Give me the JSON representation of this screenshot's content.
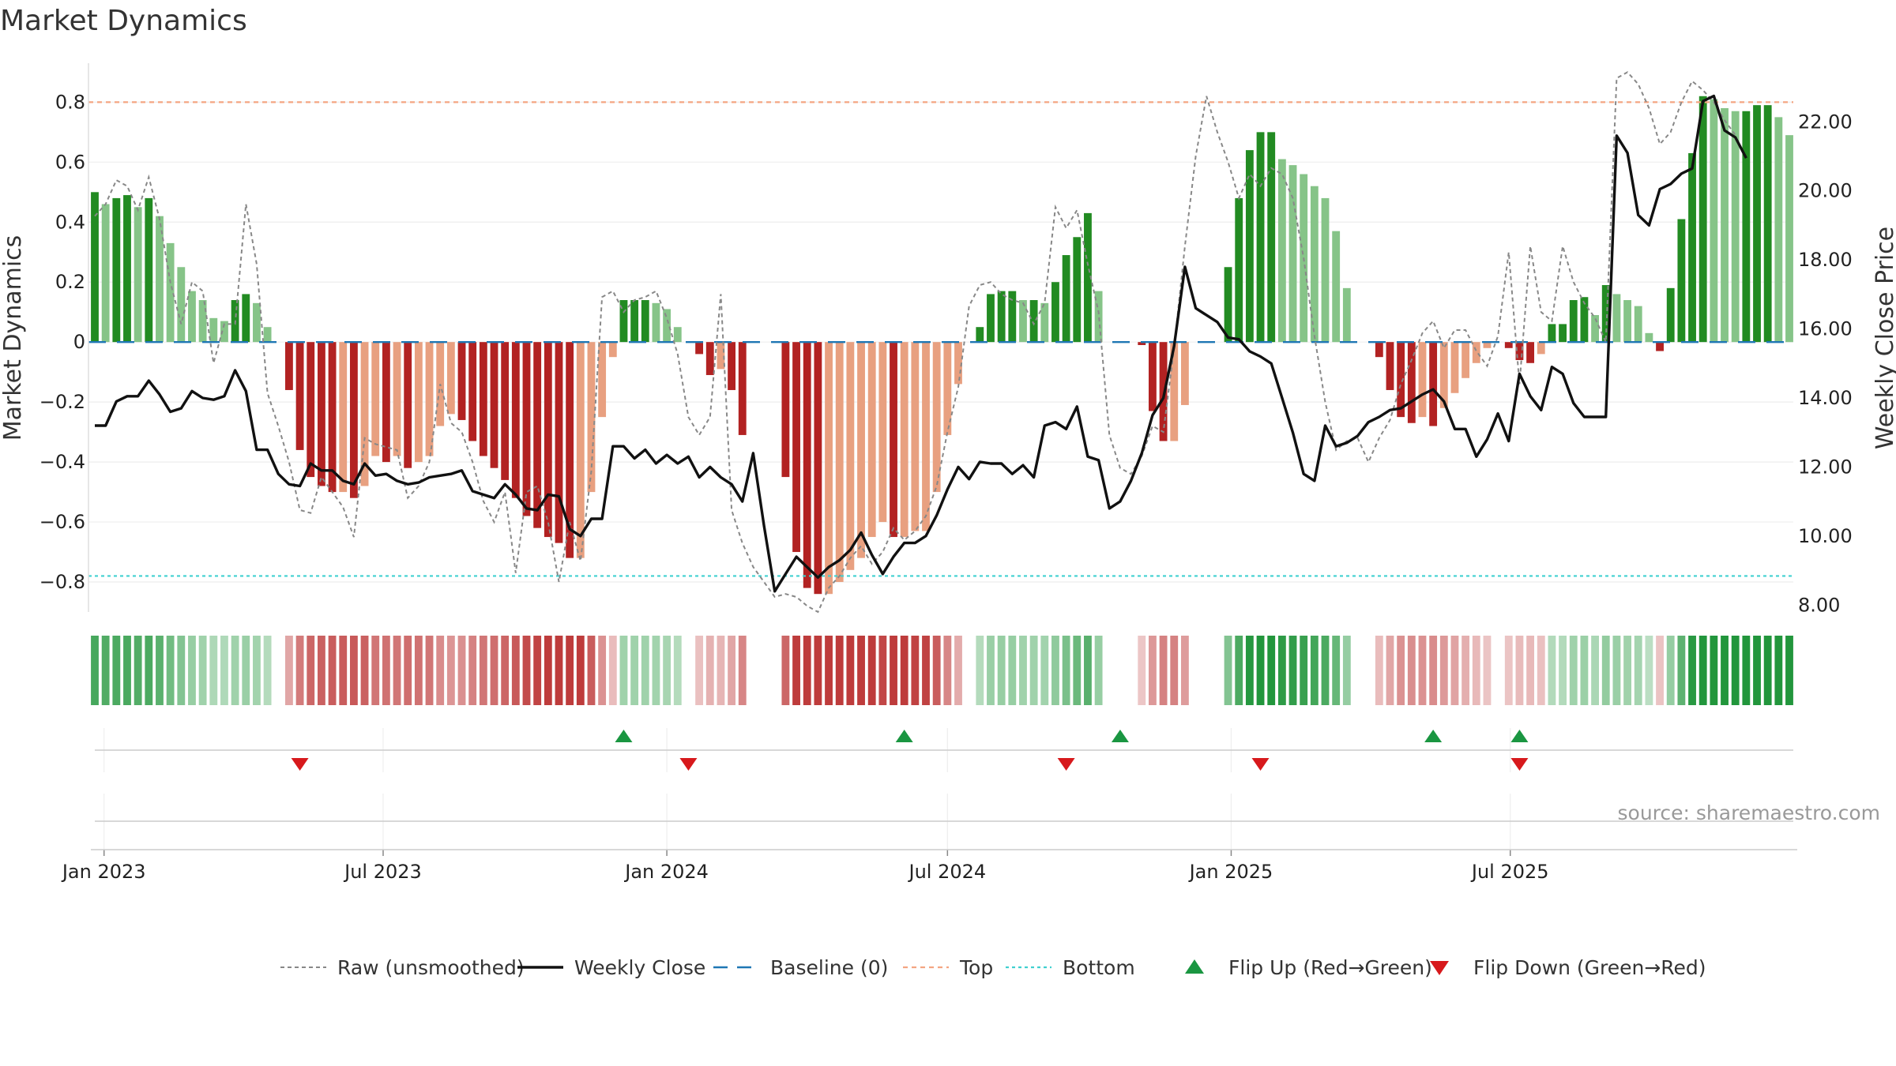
{
  "chart_data": {
    "type": "bar",
    "title": "Market Dynamics",
    "source": "source: sharemaestro.com",
    "left_axis": {
      "label": "Market Dynamics",
      "ylim": [
        -0.9,
        0.93
      ],
      "ticks": [
        -0.8,
        -0.6,
        -0.4,
        -0.2,
        0,
        0.2,
        0.4,
        0.6,
        0.8
      ],
      "tick_labels": [
        "−0.8",
        "−0.6",
        "−0.4",
        "−0.2",
        "0",
        "0.2",
        "0.4",
        "0.6",
        "0.8"
      ]
    },
    "right_axis": {
      "label": "Weekly Close Price",
      "ylim": [
        7.8,
        23.7
      ],
      "ticks": [
        8,
        10,
        12,
        14,
        16,
        18,
        20,
        22
      ],
      "tick_labels": [
        "8.00",
        "10.00",
        "12.00",
        "14.00",
        "16.00",
        "18.00",
        "20.00",
        "22.00"
      ]
    },
    "x_ticks": [
      {
        "date": "2023-01-01",
        "label": "Jan 2023"
      },
      {
        "date": "2023-07-01",
        "label": "Jul 2023"
      },
      {
        "date": "2024-01-01",
        "label": "Jan 2024"
      },
      {
        "date": "2024-07-01",
        "label": "Jul 2024"
      },
      {
        "date": "2025-01-01",
        "label": "Jan 2025"
      },
      {
        "date": "2025-07-01",
        "label": "Jul 2025"
      }
    ],
    "weeks": {
      "start_date": "2022-12-26",
      "interval_days": 7,
      "momentum": [
        0.5,
        0.46,
        0.48,
        0.49,
        0.45,
        0.48,
        0.42,
        0.33,
        0.25,
        0.17,
        0.14,
        0.08,
        0.07,
        0.14,
        0.16,
        0.13,
        0.05,
        0,
        -0.16,
        -0.36,
        -0.45,
        -0.48,
        -0.5,
        -0.5,
        -0.52,
        -0.48,
        -0.38,
        -0.4,
        -0.38,
        -0.42,
        -0.4,
        -0.38,
        -0.28,
        -0.24,
        -0.26,
        -0.33,
        -0.38,
        -0.42,
        -0.46,
        -0.52,
        -0.58,
        -0.62,
        -0.65,
        -0.67,
        -0.72,
        -0.72,
        -0.5,
        -0.25,
        -0.05,
        0.14,
        0.14,
        0.14,
        0.13,
        0.11,
        0.05,
        0,
        -0.04,
        -0.11,
        -0.09,
        -0.16,
        -0.31,
        0,
        0,
        0,
        -0.45,
        -0.7,
        -0.82,
        -0.84,
        -0.84,
        -0.8,
        -0.76,
        -0.72,
        -0.65,
        -0.6,
        -0.65,
        -0.65,
        -0.63,
        -0.63,
        -0.5,
        -0.31,
        -0.14,
        0,
        0.05,
        0.16,
        0.17,
        0.17,
        0.14,
        0.14,
        0.13,
        0.2,
        0.29,
        0.35,
        0.43,
        0.17,
        0,
        0,
        0,
        -0.01,
        -0.23,
        -0.33,
        -0.33,
        -0.21,
        0,
        0,
        0,
        0.25,
        0.48,
        0.64,
        0.7,
        0.7,
        0.61,
        0.59,
        0.56,
        0.52,
        0.48,
        0.37,
        0.18,
        0,
        0,
        -0.05,
        -0.16,
        -0.25,
        -0.27,
        -0.25,
        -0.28,
        -0.22,
        -0.17,
        -0.12,
        -0.07,
        -0.02,
        0,
        -0.02,
        -0.06,
        -0.07,
        -0.04,
        0.06,
        0.06,
        0.14,
        0.15,
        0.09,
        0.19,
        0.16,
        0.14,
        0.12,
        0.03,
        -0.03,
        0.18,
        0.41,
        0.63,
        0.82,
        0.81,
        0.78,
        0.77,
        0.77,
        0.79,
        0.79,
        0.75,
        0.69
      ],
      "raw": [
        0.42,
        0.46,
        0.54,
        0.52,
        0.44,
        0.55,
        0.41,
        0.2,
        0.06,
        0.2,
        0.17,
        -0.07,
        0.06,
        0.06,
        0.46,
        0.26,
        -0.17,
        -0.28,
        -0.4,
        -0.56,
        -0.57,
        -0.45,
        -0.5,
        -0.55,
        -0.65,
        -0.32,
        -0.34,
        -0.35,
        -0.36,
        -0.52,
        -0.48,
        -0.4,
        -0.14,
        -0.27,
        -0.3,
        -0.4,
        -0.53,
        -0.6,
        -0.5,
        -0.77,
        -0.5,
        -0.48,
        -0.6,
        -0.8,
        -0.6,
        -0.73,
        -0.43,
        0.15,
        0.17,
        0.1,
        0.14,
        0.15,
        0.17,
        0.08,
        -0.04,
        -0.25,
        -0.31,
        -0.25,
        0.16,
        -0.56,
        -0.67,
        -0.75,
        -0.8,
        -0.85,
        -0.84,
        -0.85,
        -0.88,
        -0.9,
        -0.82,
        -0.78,
        -0.72,
        -0.68,
        -0.74,
        -0.7,
        -0.62,
        -0.66,
        -0.63,
        -0.58,
        -0.48,
        -0.3,
        -0.15,
        0.12,
        0.19,
        0.2,
        0.16,
        0.14,
        0.13,
        0.06,
        0.13,
        0.45,
        0.38,
        0.44,
        0.26,
        0.1,
        -0.31,
        -0.42,
        -0.44,
        -0.38,
        -0.28,
        -0.3,
        -0.02,
        0.32,
        0.62,
        0.82,
        0.7,
        0.6,
        0.48,
        0.56,
        0.52,
        0.58,
        0.56,
        0.48,
        0.28,
        0.02,
        -0.2,
        -0.36,
        -0.33,
        -0.32,
        -0.4,
        -0.32,
        -0.26,
        -0.14,
        -0.06,
        0.03,
        0.07,
        -0.02,
        0.04,
        0.04,
        -0.03,
        -0.08,
        0.02,
        0.3,
        -0.14,
        0.32,
        0.1,
        0.07,
        0.32,
        0.2,
        0.13,
        0.08,
        0,
        0.88,
        0.9,
        0.86,
        0.78,
        0.66,
        0.7,
        0.8,
        0.87,
        0.84,
        0.8,
        0.74,
        0.69
      ],
      "close": [
        13.2,
        13.2,
        13.9,
        14.05,
        14.05,
        14.5,
        14.1,
        13.6,
        13.7,
        14.2,
        14.0,
        13.95,
        14.05,
        14.8,
        14.2,
        12.5,
        12.5,
        11.8,
        11.5,
        11.45,
        12.1,
        11.9,
        11.9,
        11.6,
        11.5,
        12.1,
        11.75,
        11.8,
        11.6,
        11.5,
        11.55,
        11.7,
        11.75,
        11.8,
        11.9,
        11.3,
        11.2,
        11.1,
        11.5,
        11.2,
        10.8,
        10.75,
        11.2,
        11.15,
        10.2,
        10.0,
        10.5,
        10.5,
        12.6,
        12.6,
        12.25,
        12.5,
        12.1,
        12.35,
        12.1,
        12.3,
        11.7,
        12.0,
        11.7,
        11.5,
        11.0,
        12.4,
        10.3,
        8.4,
        8.9,
        9.4,
        9.1,
        8.8,
        9.1,
        9.3,
        9.6,
        10.1,
        9.45,
        8.9,
        9.4,
        9.8,
        9.8,
        10.0,
        10.6,
        11.35,
        12.0,
        11.65,
        12.15,
        12.1,
        12.1,
        11.8,
        12.05,
        11.7,
        13.2,
        13.3,
        13.1,
        13.75,
        12.3,
        12.2,
        10.8,
        11.0,
        11.6,
        12.4,
        13.5,
        14.0,
        15.5,
        17.8,
        16.6,
        16.4,
        16.2,
        15.75,
        15.7,
        15.35,
        15.2,
        15.0,
        14.0,
        13.0,
        11.8,
        11.6,
        13.2,
        12.6,
        12.7,
        12.9,
        13.3,
        13.45,
        13.65,
        13.7,
        13.9,
        14.1,
        14.25,
        13.9,
        13.1,
        13.1,
        12.3,
        12.8,
        13.55,
        12.75,
        14.7,
        14.05,
        13.65,
        14.9,
        14.7,
        13.85,
        13.45,
        13.45,
        13.45,
        21.6,
        21.1,
        19.3,
        19.0,
        20.05,
        20.2,
        20.5,
        20.65,
        22.6,
        22.75,
        21.75,
        21.55,
        20.95
      ]
    },
    "reference_lines": {
      "top": 0.8,
      "bottom": -0.78,
      "baseline": 0
    },
    "regime_strip": {
      "description_omitted": true
    },
    "flip_up_dates": [
      "2023-12-04",
      "2024-06-03",
      "2024-10-21",
      "2025-05-12",
      "2025-07-07"
    ],
    "flip_down_dates": [
      "2023-05-08",
      "2024-01-15",
      "2024-09-16",
      "2025-01-20",
      "2025-07-07"
    ],
    "legend": [
      {
        "label": "Raw (unsmoothed)",
        "style": "dotted-gray"
      },
      {
        "label": "Weekly Close",
        "style": "solid-black"
      },
      {
        "label": "Baseline (0)",
        "style": "dashed-blue"
      },
      {
        "label": "Top",
        "style": "dotted-orange"
      },
      {
        "label": "Bottom",
        "style": "dotted-cyan"
      },
      {
        "label": "Flip Up (Red→Green)",
        "style": "triangle-up-green"
      },
      {
        "label": "Flip Down (Green→Red)",
        "style": "triangle-down-red"
      }
    ],
    "colors": {
      "green_strong": "#228b22",
      "green_light": "#86c488",
      "red_strong": "#b22222",
      "red_light": "#e8a080",
      "raw_line": "#888888",
      "close_line": "#111111",
      "baseline": "#1f77b4",
      "top_line": "#f4a582",
      "bottom_line": "#40d0d0",
      "flip_up": "#1a9641",
      "flip_down": "#d7191c"
    }
  }
}
